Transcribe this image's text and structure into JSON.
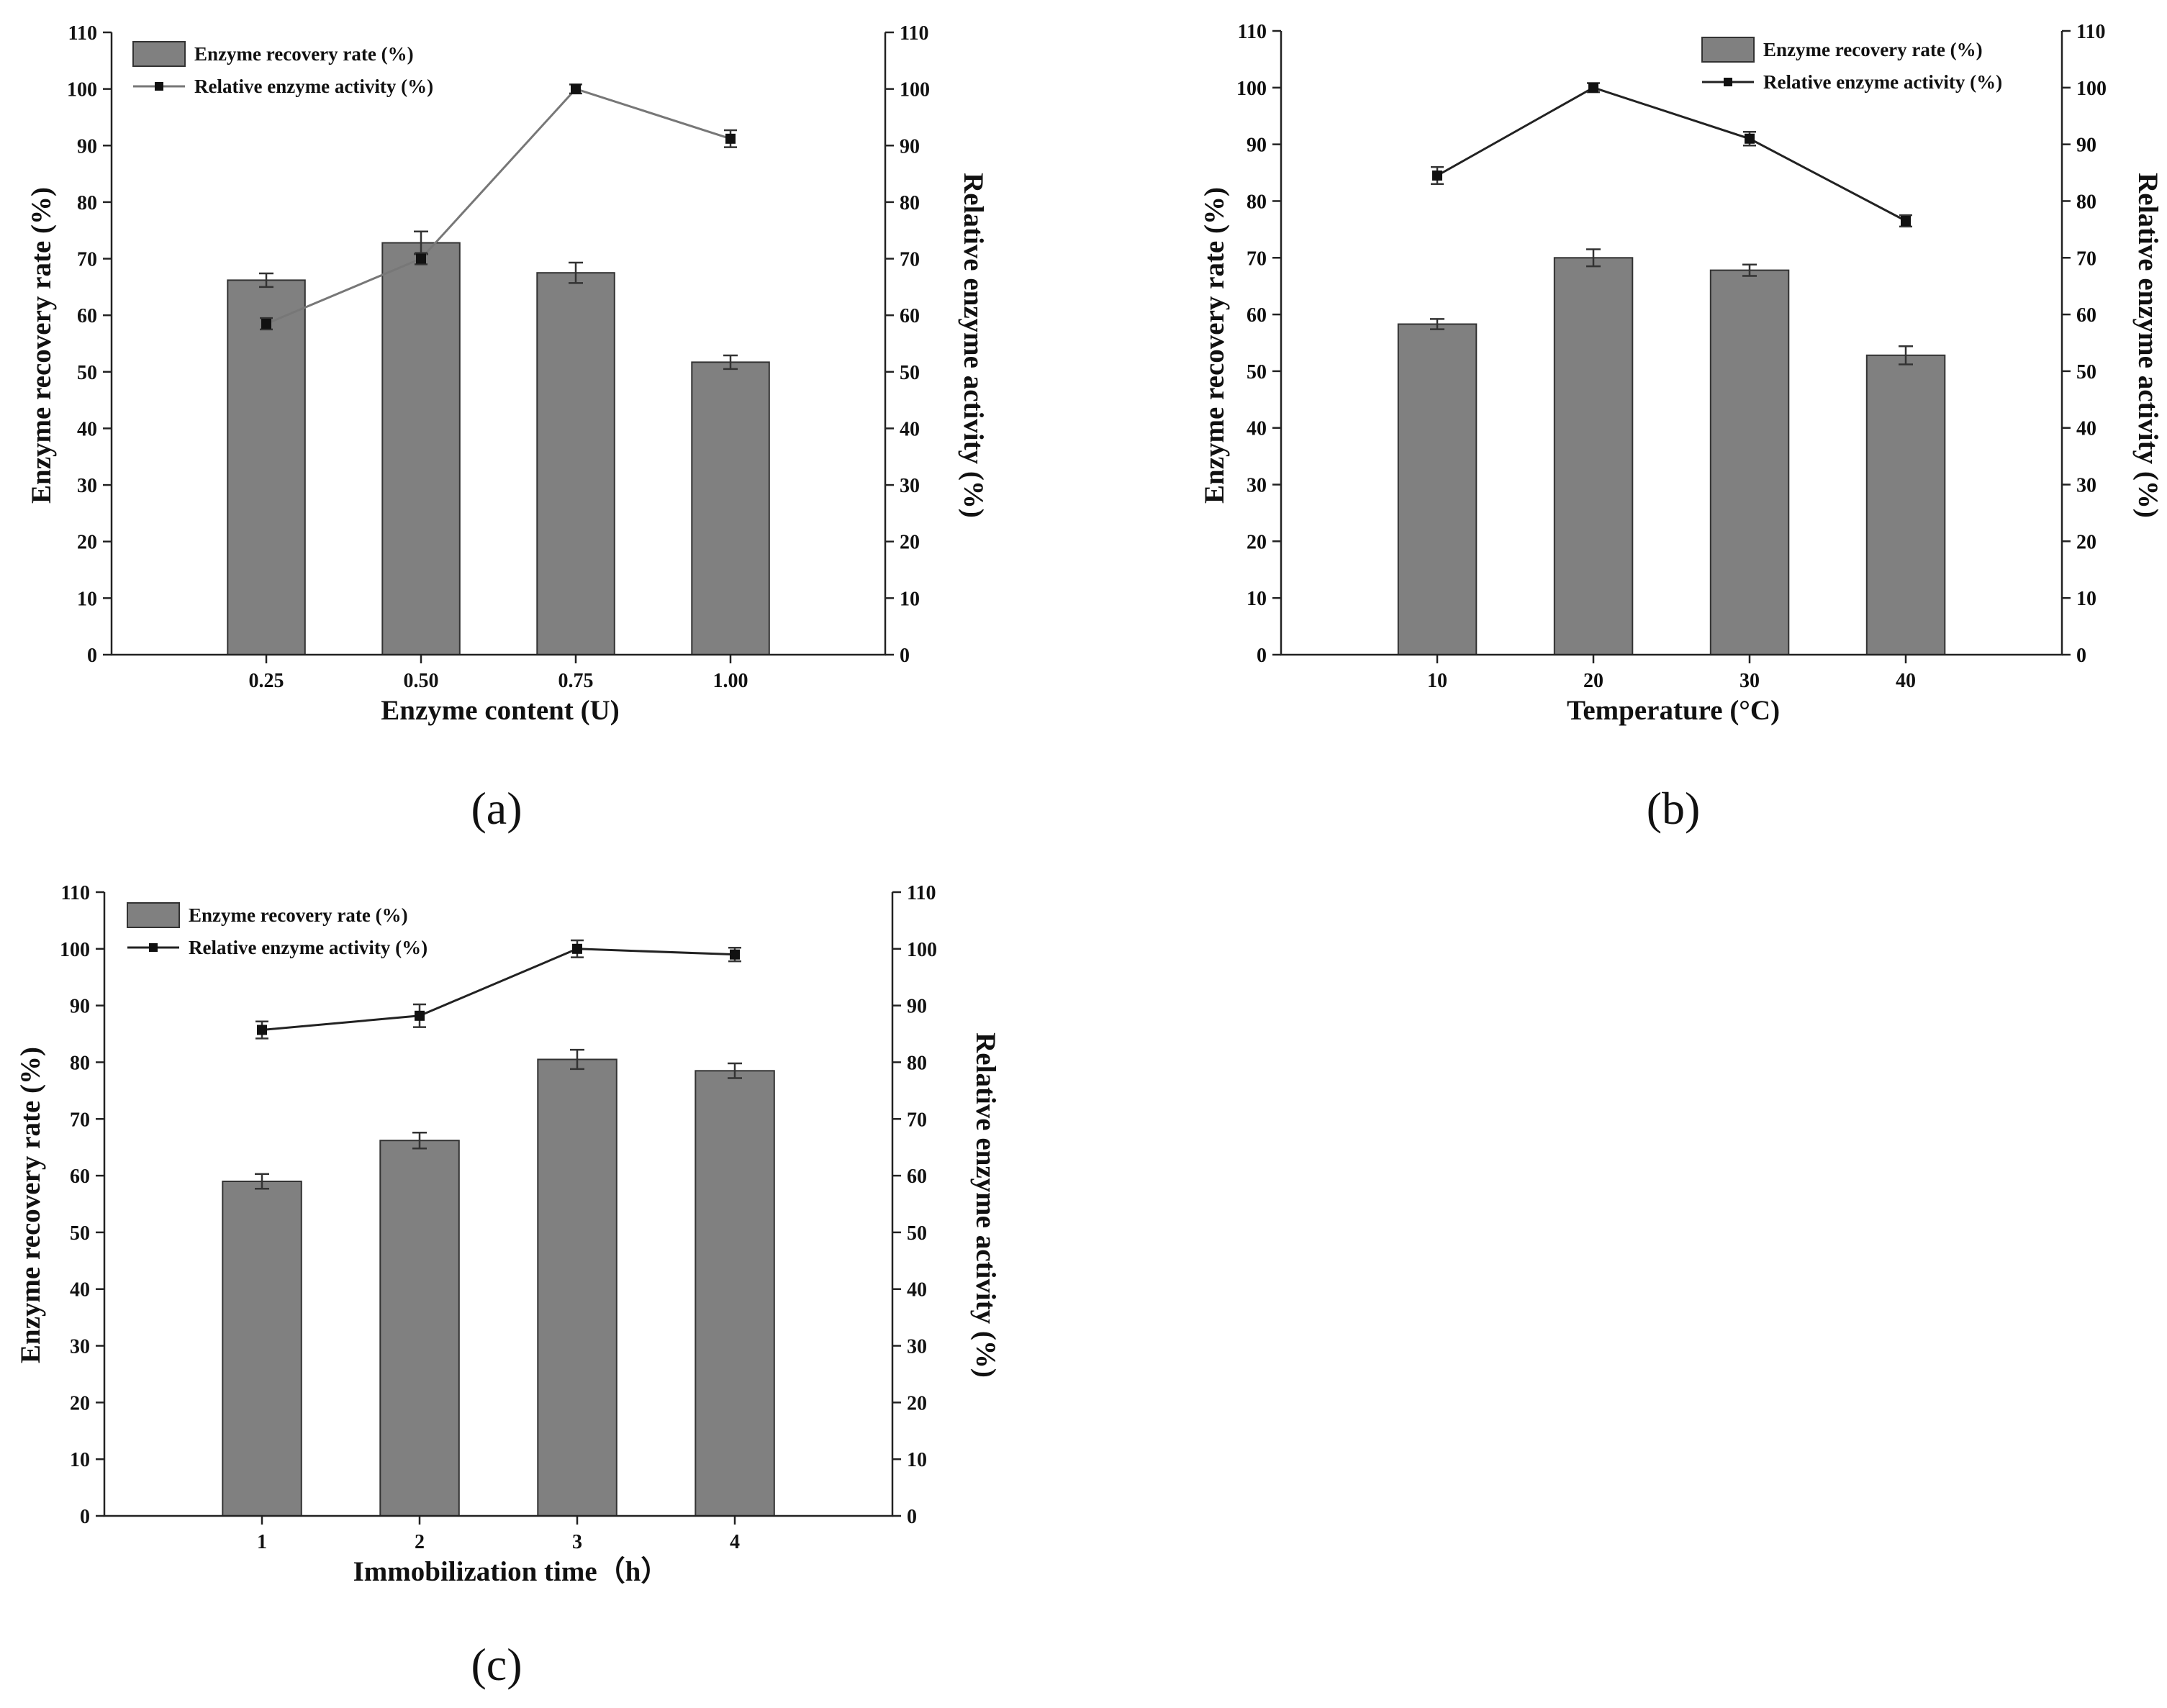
{
  "figure": {
    "colors": {
      "bar": "#808080",
      "line_light": "#777777",
      "line_dark": "#222222",
      "marker": "#111111"
    }
  },
  "chart_data": [
    {
      "id": "a",
      "type": "bar",
      "panel_label": "(a)",
      "xlabel": "Enzyme content (U)",
      "ylabel": "Enzyme recovery rate (%)",
      "y2label": "Relative enzyme activity (%)",
      "categories": [
        "0.25",
        "0.50",
        "0.75",
        "1.00"
      ],
      "ylim": [
        0,
        110
      ],
      "y2lim": [
        0,
        110
      ],
      "yticks": [
        0,
        10,
        20,
        30,
        40,
        50,
        60,
        70,
        80,
        90,
        100,
        110
      ],
      "legend_position": "top-left",
      "series": [
        {
          "name": "Enzyme recovery rate (%)",
          "kind": "bar",
          "axis": "left",
          "values": [
            66.2,
            72.8,
            67.5,
            51.7
          ],
          "errors": [
            1.2,
            2.0,
            1.8,
            1.2
          ]
        },
        {
          "name": "Relative enzyme activity (%)",
          "kind": "line",
          "axis": "right",
          "values": [
            58.5,
            70.0,
            100.0,
            91.2
          ],
          "errors": [
            1.0,
            1.0,
            0.8,
            1.5
          ]
        }
      ]
    },
    {
      "id": "b",
      "type": "bar",
      "panel_label": "(b)",
      "xlabel": "Temperature (°C)",
      "ylabel": "Enzyme recovery rate (%)",
      "y2label": "Relative enzyme activity (%)",
      "categories": [
        "10",
        "20",
        "30",
        "40"
      ],
      "ylim": [
        0,
        110
      ],
      "y2lim": [
        0,
        110
      ],
      "yticks": [
        0,
        10,
        20,
        30,
        40,
        50,
        60,
        70,
        80,
        90,
        100,
        110
      ],
      "legend_position": "top-right",
      "series": [
        {
          "name": "Enzyme recovery rate (%)",
          "kind": "bar",
          "axis": "left",
          "values": [
            58.3,
            70.0,
            67.8,
            52.8
          ],
          "errors": [
            0.9,
            1.5,
            1.0,
            1.6
          ]
        },
        {
          "name": "Relative enzyme activity (%)",
          "kind": "line",
          "axis": "right",
          "values": [
            84.5,
            100.0,
            91.0,
            76.5
          ],
          "errors": [
            1.5,
            0.8,
            1.2,
            1.0
          ]
        }
      ]
    },
    {
      "id": "c",
      "type": "bar",
      "panel_label": "(c)",
      "xlabel": "Immobilization time（h）",
      "ylabel": "Enzyme recovery rate (%)",
      "y2label": "Relative enzyme activity (%)",
      "categories": [
        "1",
        "2",
        "3",
        "4"
      ],
      "ylim": [
        0,
        110
      ],
      "y2lim": [
        0,
        110
      ],
      "yticks": [
        0,
        10,
        20,
        30,
        40,
        50,
        60,
        70,
        80,
        90,
        100,
        110
      ],
      "legend_position": "top-left",
      "series": [
        {
          "name": "Enzyme recovery rate (%)",
          "kind": "bar",
          "axis": "left",
          "values": [
            59.0,
            66.2,
            80.5,
            78.5
          ],
          "errors": [
            1.3,
            1.4,
            1.7,
            1.3
          ]
        },
        {
          "name": "Relative enzyme activity (%)",
          "kind": "line",
          "axis": "right",
          "values": [
            85.7,
            88.2,
            100.0,
            99.0
          ],
          "errors": [
            1.5,
            2.0,
            1.5,
            1.2
          ]
        }
      ]
    }
  ]
}
